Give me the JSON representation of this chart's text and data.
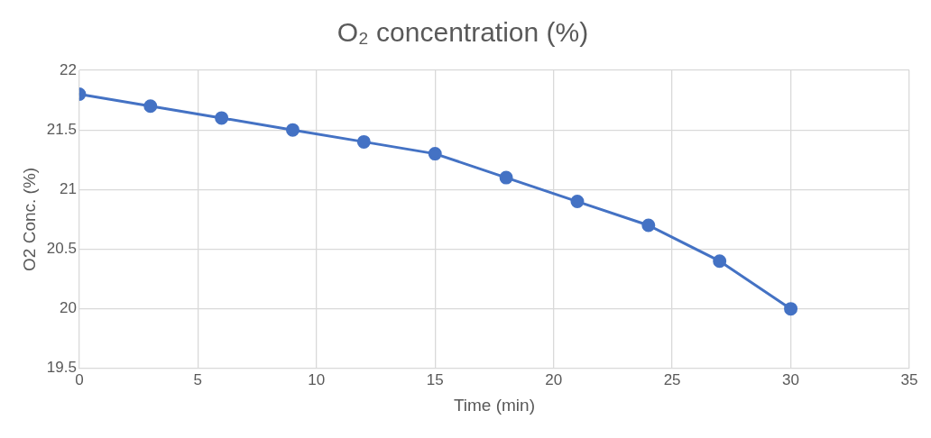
{
  "chart_data": {
    "type": "line",
    "title": "O₂ concentration (%)",
    "xlabel": "Time (min)",
    "ylabel": "O2 Conc. (%)",
    "x": [
      0,
      3,
      6,
      9,
      12,
      15,
      18,
      21,
      24,
      27,
      30
    ],
    "series": [
      {
        "color": "#4472c4",
        "values": [
          21.8,
          21.7,
          21.6,
          21.5,
          21.4,
          21.3,
          21.1,
          20.9,
          20.7,
          20.4,
          20.0
        ]
      }
    ],
    "xlim": [
      0,
      35
    ],
    "xticks": [
      0,
      5,
      10,
      15,
      20,
      25,
      30,
      35
    ],
    "ylim": [
      19.5,
      22
    ],
    "yticks": [
      19.5,
      20,
      20.5,
      21,
      21.5,
      22
    ],
    "grid": true,
    "marker": "circle",
    "line_style": "solid"
  }
}
